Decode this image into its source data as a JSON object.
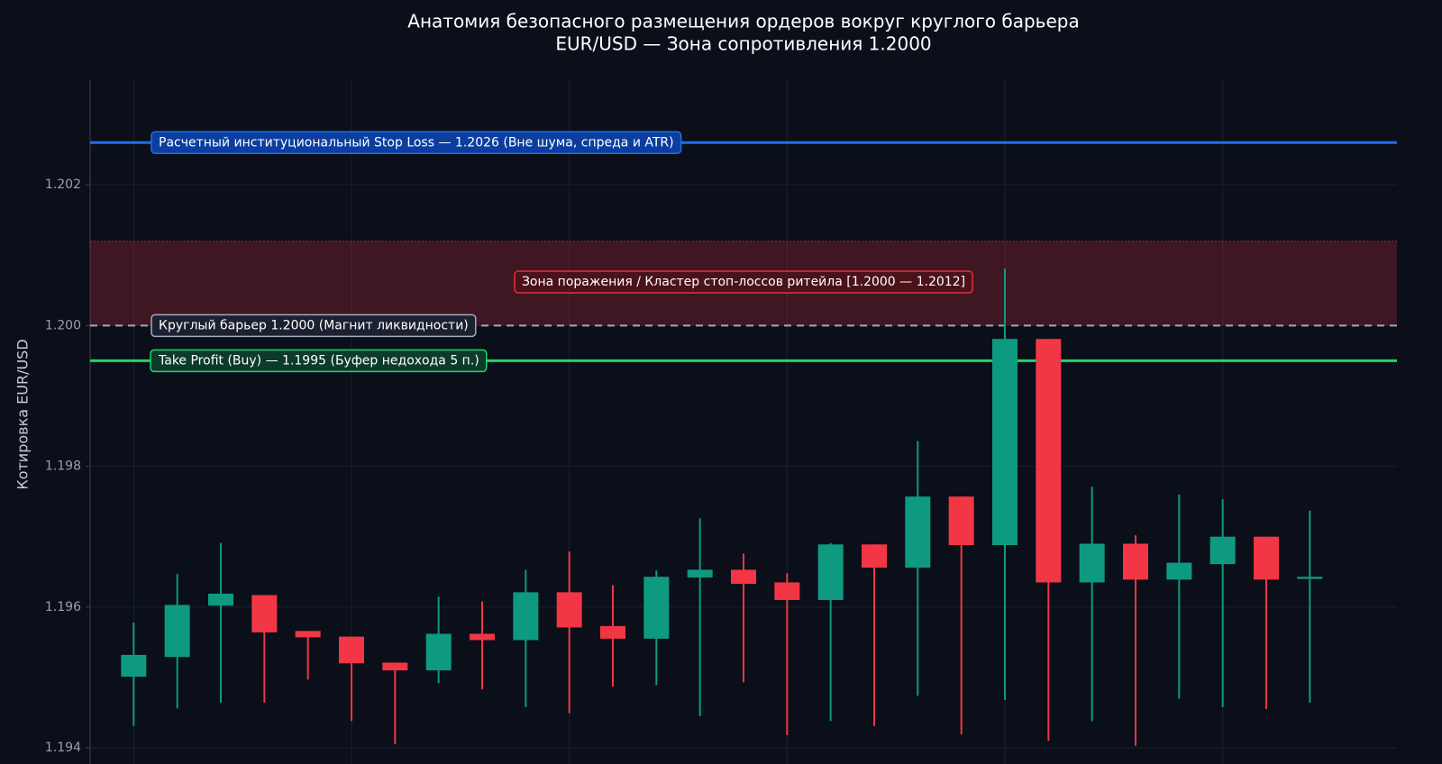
{
  "chart_data": {
    "type": "candlestick",
    "title": "Анатомия безопасного размещения ордеров вокруг круглого барьера",
    "subtitle": "EUR/USD — Зона сопротивления 1.2000",
    "y_label": "Котировка EUR/USD",
    "categories": [
      null,
      null,
      null,
      null,
      null,
      null,
      null,
      null,
      null,
      null,
      null,
      null,
      null,
      null,
      null,
      null,
      null,
      null,
      null,
      null,
      null,
      null,
      null,
      null,
      null,
      null,
      null,
      null
    ],
    "open": [
      1.19501,
      1.19529,
      1.19602,
      1.19617,
      1.19566,
      1.19558,
      1.19521,
      1.1951,
      1.19562,
      1.19553,
      1.19621,
      1.19573,
      1.19555,
      1.19642,
      1.19653,
      1.19635,
      1.1961,
      1.19689,
      1.19656,
      1.19757,
      1.19688,
      1.19981,
      1.19635,
      1.1969,
      1.19639,
      1.19661,
      1.197,
      1.1964
    ],
    "high": [
      1.19578,
      1.19647,
      1.19691,
      1.19617,
      1.19566,
      1.19558,
      1.19521,
      1.19615,
      1.19608,
      1.19653,
      1.19679,
      1.19631,
      1.19652,
      1.19726,
      1.19676,
      1.19648,
      1.19691,
      1.19689,
      1.19836,
      1.19757,
      1.20081,
      1.19981,
      1.19771,
      1.19702,
      1.1976,
      1.19753,
      1.197,
      1.19737
    ],
    "low": [
      1.19431,
      1.19456,
      1.19464,
      1.19464,
      1.19497,
      1.19438,
      1.19405,
      1.19492,
      1.19483,
      1.19458,
      1.19449,
      1.19487,
      1.19489,
      1.19445,
      1.19493,
      1.19418,
      1.19438,
      1.19431,
      1.19474,
      1.19419,
      1.19468,
      1.1941,
      1.19438,
      1.19403,
      1.1947,
      1.19458,
      1.19455,
      1.19464
    ],
    "close": [
      1.19532,
      1.19603,
      1.19619,
      1.19564,
      1.19557,
      1.1952,
      1.1951,
      1.19562,
      1.19553,
      1.19621,
      1.19571,
      1.19555,
      1.19643,
      1.19653,
      1.19633,
      1.1961,
      1.19689,
      1.19656,
      1.19757,
      1.19688,
      1.19981,
      1.19635,
      1.1969,
      1.19639,
      1.19663,
      1.197,
      1.19639,
      1.19643
    ],
    "up_color": "#0e9a80",
    "down_color": "#f23645",
    "ylim": [
      1.194,
      1.2035
    ],
    "yticks": [
      1.194,
      1.196,
      1.198,
      {
        "value": 1.2,
        "label": "1.200"
      },
      1.202
    ],
    "grid": true,
    "hlines": [
      {
        "value": 1.2026,
        "label": "Расчетный институциональный Stop Loss — 1.2026 (Вне шума, спреда и ATR)",
        "color": "#1f6fe8",
        "style": "solid"
      },
      {
        "value": 1.2,
        "label": "Круглый барьер 1.2000 (Магнит ликвидности)",
        "color": "#a6a9b8",
        "style": "dashed"
      },
      {
        "value": 1.1995,
        "label": "Take Profit (Buy) — 1.1995 (Буфер недохода 5 п.)",
        "color": "#21d46a",
        "style": "solid"
      }
    ],
    "zone": {
      "range": [
        1.2,
        1.2012
      ],
      "label": "Зона поражения / Кластер стоп-лоссов ритейла [1.2000 — 1.2012]",
      "color": "#e0303d"
    }
  }
}
